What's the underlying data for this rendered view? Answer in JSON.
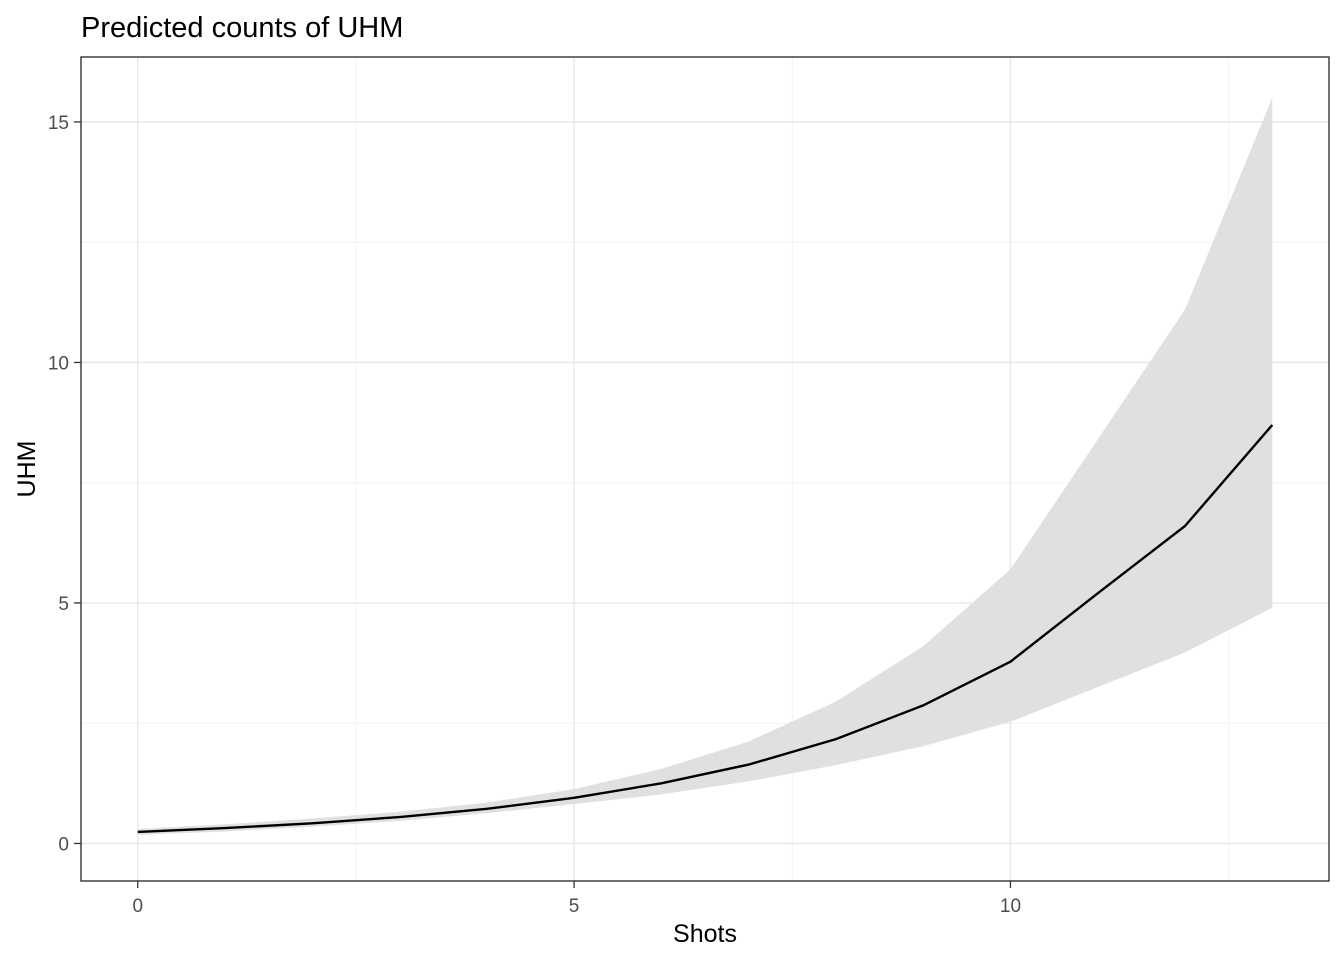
{
  "chart_data": {
    "type": "line",
    "title": "Predicted counts of UHM",
    "xlabel": "Shots",
    "ylabel": "UHM",
    "xlim": [
      -0.65,
      13.65
    ],
    "ylim": [
      -0.78,
      16.35
    ],
    "x_ticks": [
      0,
      5,
      10
    ],
    "x_tick_labels": [
      "0",
      "5",
      "10"
    ],
    "y_ticks": [
      0,
      5,
      10,
      15
    ],
    "y_tick_labels": [
      "0",
      "5",
      "10",
      "15"
    ],
    "grid": true,
    "legend": "none",
    "series": [
      {
        "x": [
          0,
          1,
          2,
          3,
          4,
          5,
          6,
          7,
          8,
          9,
          10,
          11,
          12,
          13
        ],
        "y": [
          0.24,
          0.32,
          0.42,
          0.55,
          0.72,
          0.95,
          1.25,
          1.64,
          2.17,
          2.87,
          3.78,
          5.2,
          6.6,
          8.7
        ],
        "lower": [
          0.18,
          0.25,
          0.35,
          0.47,
          0.63,
          0.82,
          1.02,
          1.29,
          1.63,
          2.02,
          2.53,
          3.25,
          3.97,
          4.9
        ],
        "upper": [
          0.3,
          0.4,
          0.52,
          0.66,
          0.85,
          1.13,
          1.55,
          2.12,
          2.95,
          4.1,
          5.7,
          8.4,
          11.1,
          15.5
        ],
        "line_color": "#000000",
        "band_color": "#e0e0e0"
      }
    ]
  }
}
